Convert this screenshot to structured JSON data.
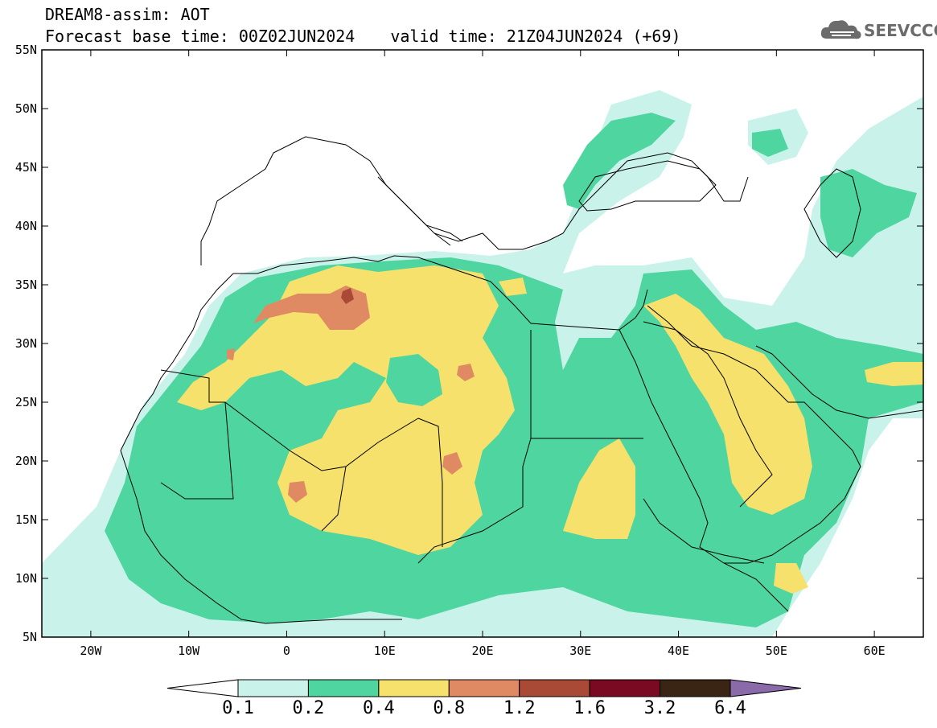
{
  "header": {
    "title_line1": "DREAM8-assim: AOT",
    "forecast_base": "Forecast base time: 00Z02JUN2024",
    "valid_time": "valid time: 21Z04JUN2024 (+69)"
  },
  "logo": {
    "text": "SEEVCCC",
    "icon": "cloud-icon"
  },
  "map": {
    "projection": "cylindrical",
    "lon_range": [
      -25,
      65
    ],
    "lat_range": [
      5,
      55
    ],
    "lat_labels": [
      "55N",
      "50N",
      "45N",
      "40N",
      "35N",
      "30N",
      "25N",
      "20N",
      "15N",
      "10N",
      "5N"
    ],
    "lon_labels": [
      "20W",
      "10W",
      "0",
      "10E",
      "20E",
      "30E",
      "40E",
      "50E",
      "60E"
    ]
  },
  "colorbar": {
    "levels": [
      "0.1",
      "0.2",
      "0.4",
      "0.8",
      "1.2",
      "1.6",
      "3.2",
      "6.4"
    ],
    "colors": [
      "#ffffff",
      "#c8f2ea",
      "#4fd6a0",
      "#f5e16b",
      "#e08a63",
      "#a84a36",
      "#7a0a22",
      "#3a2514",
      "#8a6aa8"
    ]
  }
}
